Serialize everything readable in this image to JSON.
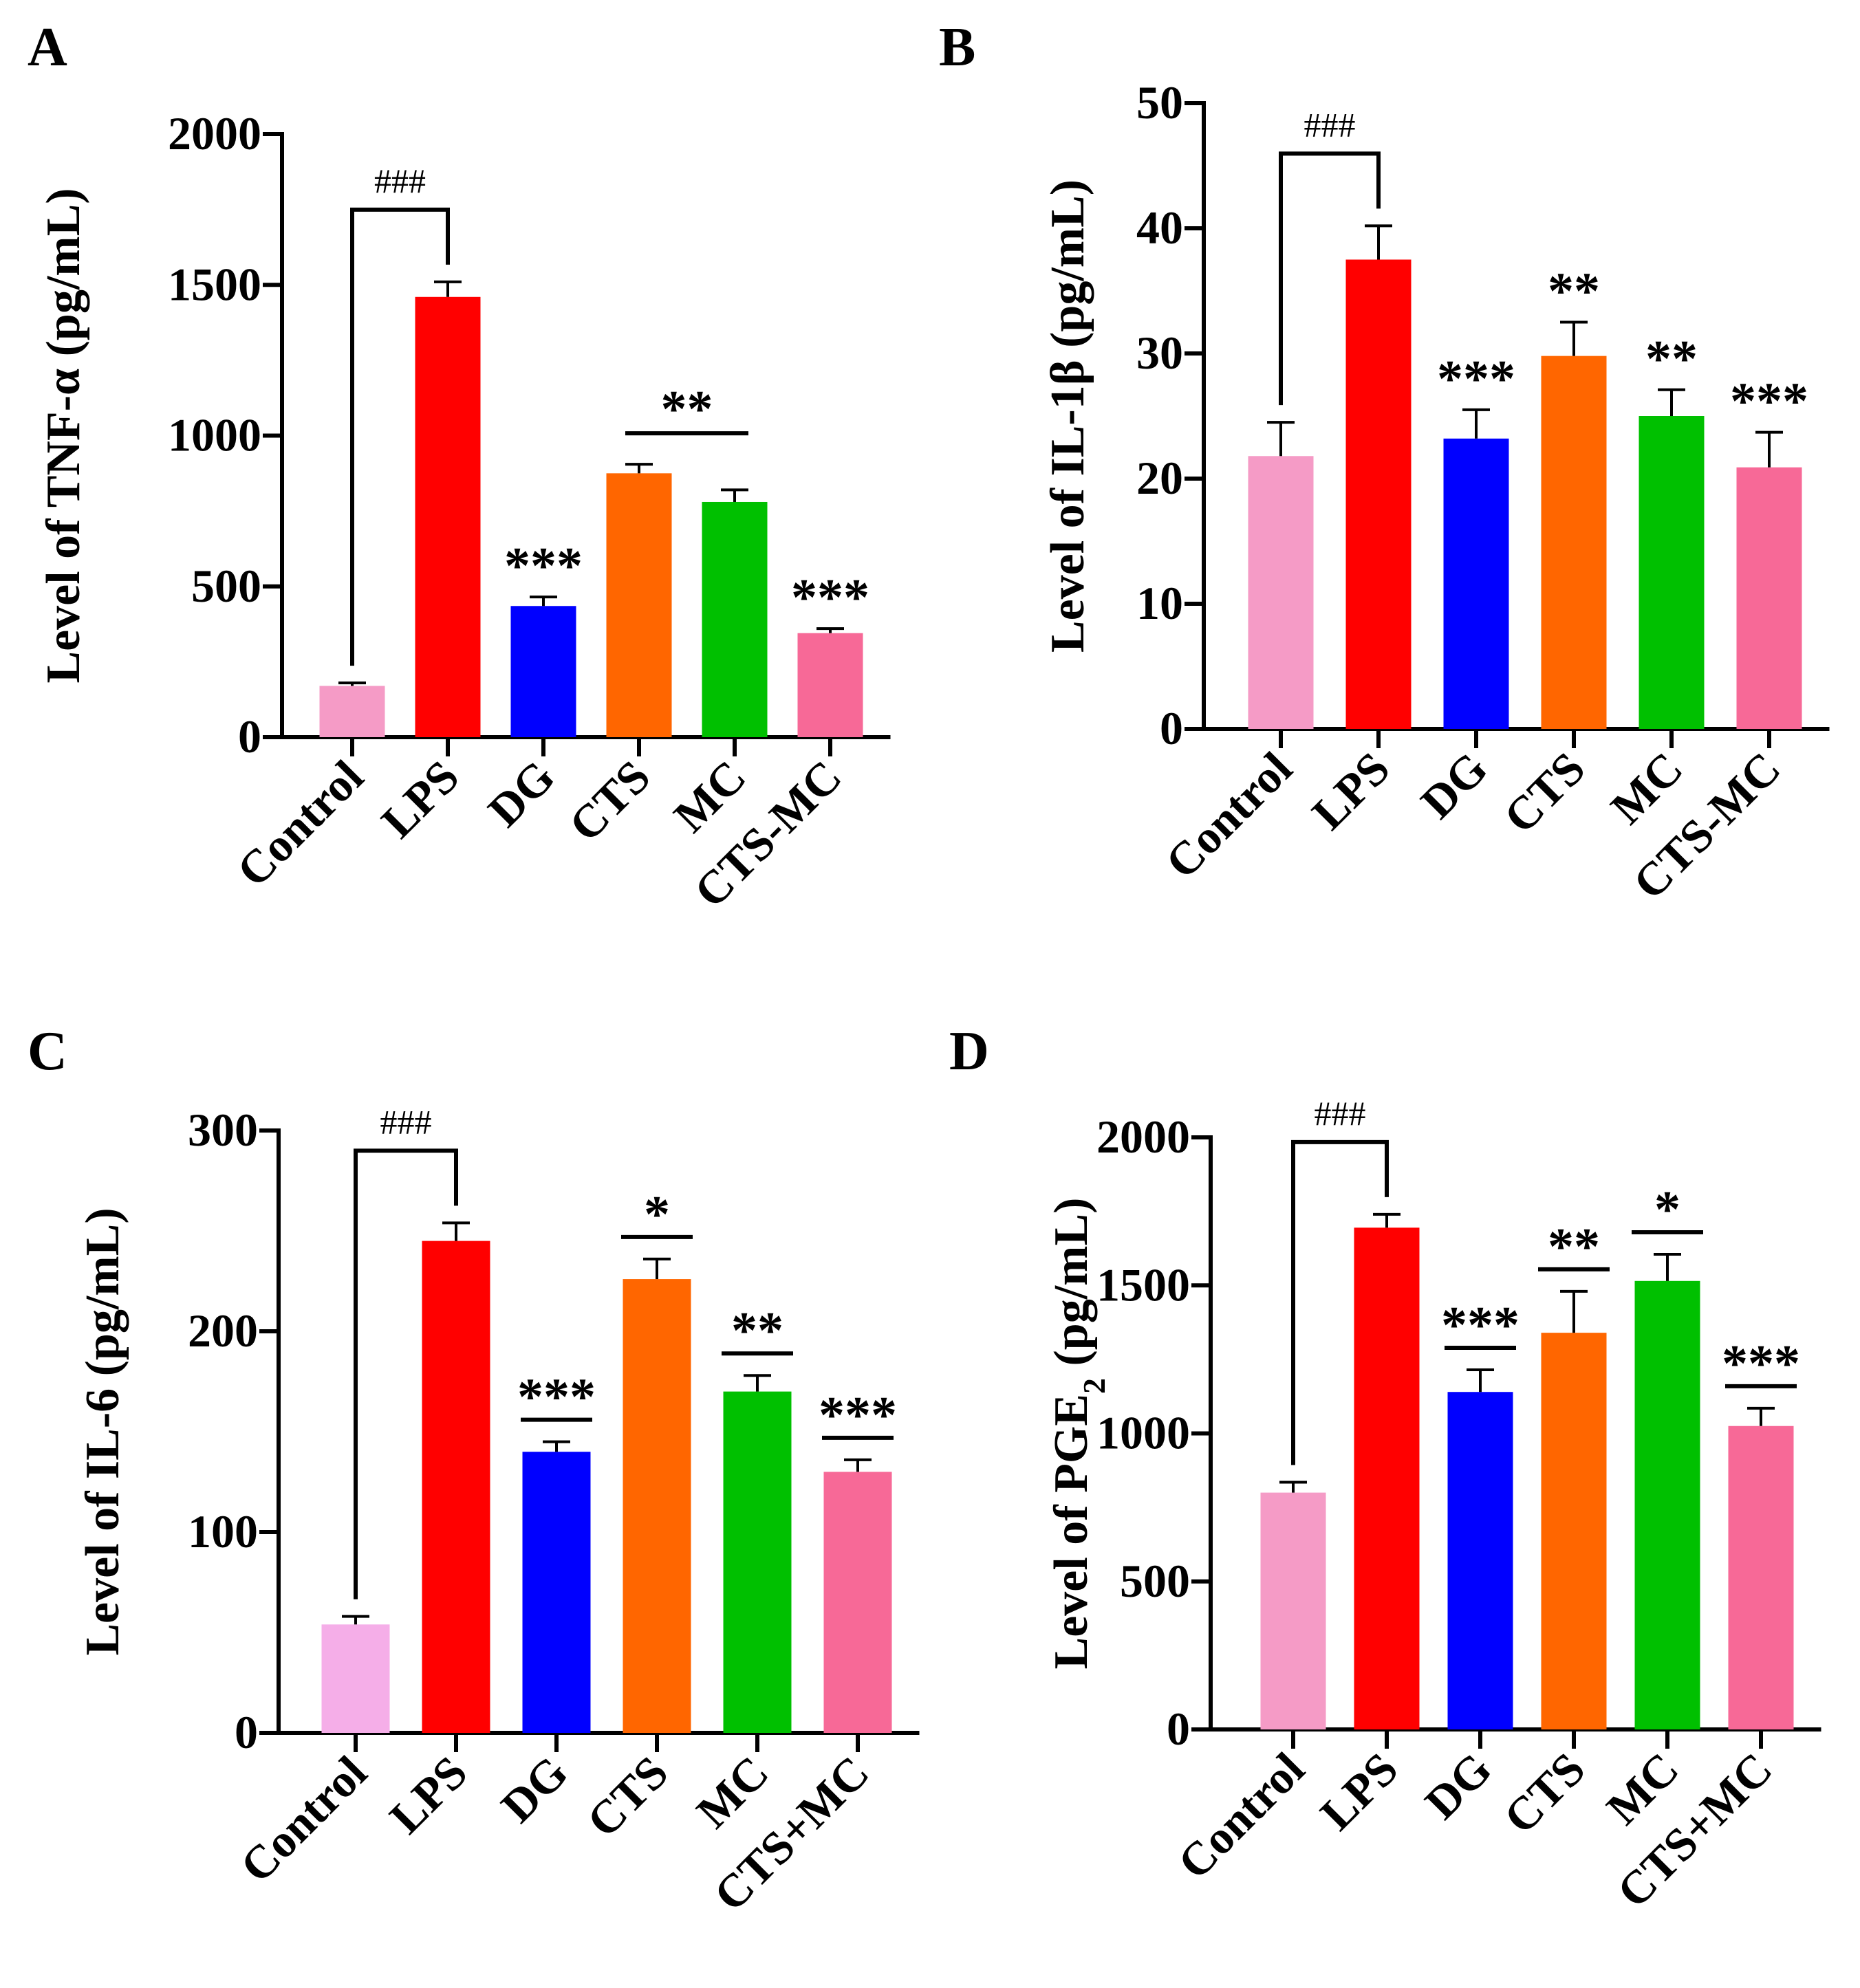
{
  "chart_data": [
    {
      "panel": "A",
      "type": "bar",
      "ylabel": "Level of TNF-α (pg/mL)",
      "categories": [
        "Control",
        "LPS",
        "DG",
        "CTS",
        "MC",
        "CTS-MC"
      ],
      "values": [
        170,
        1460,
        435,
        875,
        780,
        345
      ],
      "errors": [
        10,
        50,
        30,
        30,
        40,
        15
      ],
      "colors": [
        "#F59BC6",
        "#FF0000",
        "#0000FF",
        "#FF6600",
        "#00C000",
        "#F76997"
      ],
      "ylim": [
        0,
        2000
      ],
      "yticks": [
        0,
        500,
        1000,
        1500,
        2000
      ],
      "annotations": [
        {
          "type": "bracket",
          "label": "###",
          "from": 0,
          "to": 1
        },
        {
          "type": "star",
          "label": "***",
          "bar": 2
        },
        {
          "type": "line",
          "label": "**",
          "from": 3,
          "to": 4
        },
        {
          "type": "star",
          "label": "***",
          "bar": 5
        }
      ]
    },
    {
      "panel": "B",
      "type": "bar",
      "ylabel": "Level of IL-1β (pg/mL)",
      "categories": [
        "Control",
        "LPS",
        "DG",
        "CTS",
        "MC",
        "CTS-MC"
      ],
      "values": [
        21.8,
        37.5,
        23.2,
        29.8,
        25.0,
        20.9
      ],
      "errors": [
        2.7,
        2.7,
        2.3,
        2.7,
        2.1,
        2.8
      ],
      "colors": [
        "#F59BC6",
        "#FF0000",
        "#0000FF",
        "#FF6600",
        "#00C000",
        "#F76997"
      ],
      "ylim": [
        0,
        50
      ],
      "yticks": [
        0,
        10,
        20,
        30,
        40,
        50
      ],
      "annotations": [
        {
          "type": "bracket",
          "label": "###",
          "from": 0,
          "to": 1
        },
        {
          "type": "star",
          "label": "***",
          "bar": 2
        },
        {
          "type": "star",
          "label": "**",
          "bar": 3
        },
        {
          "type": "star",
          "label": "**",
          "bar": 4
        },
        {
          "type": "star",
          "label": "***",
          "bar": 5
        }
      ]
    },
    {
      "panel": "C",
      "type": "bar",
      "ylabel": "Level of IL-6 (pg/mL)",
      "categories": [
        "Control",
        "LPS",
        "DG",
        "CTS",
        "MC",
        "CTS+MC"
      ],
      "values": [
        54,
        245,
        140,
        226,
        170,
        130
      ],
      "errors": [
        4,
        9,
        5,
        10,
        8,
        6
      ],
      "colors": [
        "#F5AEE8",
        "#FF0000",
        "#0000FF",
        "#FF6600",
        "#00C000",
        "#F76997"
      ],
      "ylim": [
        0,
        300
      ],
      "yticks": [
        0,
        100,
        200,
        300
      ],
      "annotations": [
        {
          "type": "bracket",
          "label": "###",
          "from": 0,
          "to": 1
        },
        {
          "type": "starline",
          "label": "***",
          "bar": 2
        },
        {
          "type": "starline",
          "label": "*",
          "bar": 3
        },
        {
          "type": "starline",
          "label": "**",
          "bar": 4
        },
        {
          "type": "starline",
          "label": "***",
          "bar": 5
        }
      ]
    },
    {
      "panel": "D",
      "type": "bar",
      "ylabel": "Level of PGE",
      "ylabel_sub": "2",
      "ylabel_tail": "  (pg/mL)",
      "categories": [
        "Control",
        "LPS",
        "DG",
        "CTS",
        "MC",
        "CTS+MC"
      ],
      "values": [
        800,
        1695,
        1140,
        1340,
        1515,
        1025
      ],
      "errors": [
        35,
        45,
        75,
        140,
        90,
        60
      ],
      "colors": [
        "#F59BC6",
        "#FF0000",
        "#0000FF",
        "#FF6600",
        "#00C000",
        "#F76997"
      ],
      "ylim": [
        0,
        2000
      ],
      "yticks": [
        0,
        500,
        1000,
        1500,
        2000
      ],
      "annotations": [
        {
          "type": "bracket",
          "label": "###",
          "from": 0,
          "to": 1
        },
        {
          "type": "starline",
          "label": "***",
          "bar": 2
        },
        {
          "type": "starline",
          "label": "**",
          "bar": 3
        },
        {
          "type": "starline",
          "label": "*",
          "bar": 4
        },
        {
          "type": "starline",
          "label": "***",
          "bar": 5
        }
      ]
    }
  ]
}
